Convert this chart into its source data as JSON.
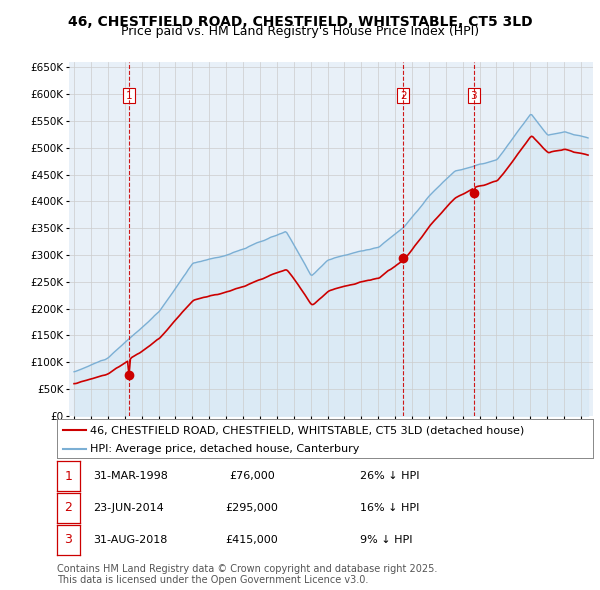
{
  "title": "46, CHESTFIELD ROAD, CHESTFIELD, WHITSTABLE, CT5 3LD",
  "subtitle": "Price paid vs. HM Land Registry's House Price Index (HPI)",
  "ylim": [
    0,
    660000
  ],
  "yticks": [
    0,
    50000,
    100000,
    150000,
    200000,
    250000,
    300000,
    350000,
    400000,
    450000,
    500000,
    550000,
    600000,
    650000
  ],
  "ytick_labels": [
    "£0",
    "£50K",
    "£100K",
    "£150K",
    "£200K",
    "£250K",
    "£300K",
    "£350K",
    "£400K",
    "£450K",
    "£500K",
    "£550K",
    "£600K",
    "£650K"
  ],
  "hpi_color": "#7bafd4",
  "hpi_fill_color": "#d6e8f5",
  "price_color": "#cc0000",
  "vline_color": "#cc0000",
  "grid_color": "#cccccc",
  "background_color": "#ffffff",
  "chart_bg_color": "#e8f0f8",
  "legend_label_red": "46, CHESTFIELD ROAD, CHESTFIELD, WHITSTABLE, CT5 3LD (detached house)",
  "legend_label_blue": "HPI: Average price, detached house, Canterbury",
  "sales": [
    {
      "date_num": 1998.25,
      "price": 76000,
      "label": "1",
      "date_str": "31-MAR-1998",
      "amount": "£76,000",
      "note": "26% ↓ HPI"
    },
    {
      "date_num": 2014.48,
      "price": 295000,
      "label": "2",
      "date_str": "23-JUN-2014",
      "amount": "£295,000",
      "note": "16% ↓ HPI"
    },
    {
      "date_num": 2018.66,
      "price": 415000,
      "label": "3",
      "date_str": "31-AUG-2018",
      "amount": "£415,000",
      "note": "9% ↓ HPI"
    }
  ],
  "footer_text": "Contains HM Land Registry data © Crown copyright and database right 2025.\nThis data is licensed under the Open Government Licence v3.0.",
  "title_fontsize": 10,
  "subtitle_fontsize": 9,
  "tick_fontsize": 7.5,
  "legend_fontsize": 8,
  "footer_fontsize": 7
}
